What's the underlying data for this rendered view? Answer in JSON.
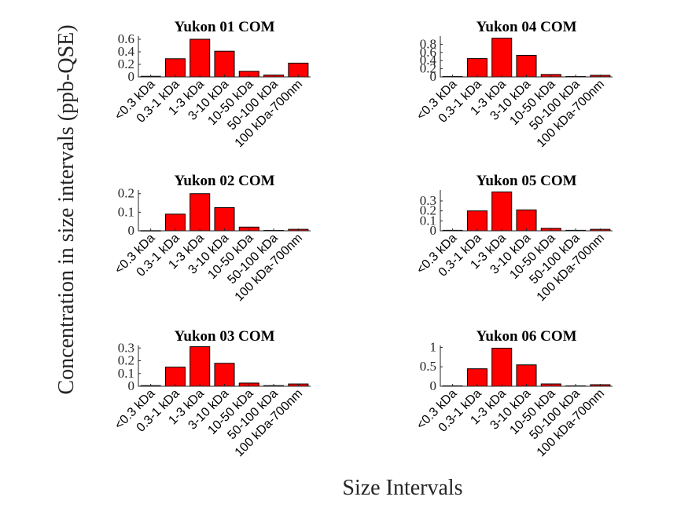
{
  "figure": {
    "ylabel": "Concentration in size intervals (ppb-QSE)",
    "xlabel": "Size Intervals",
    "bar_color": "#ff0000",
    "edge_color": "#000000"
  },
  "chart_data": [
    {
      "type": "bar",
      "title": "Yukon 01 COM",
      "categories": [
        "<0.3 kDa",
        "0.3-1 kDa",
        "1-3 kDa",
        "3-10 kDa",
        "10-50 kDa",
        "50-100 kDa",
        "100 kDa-700nm"
      ],
      "values": [
        0.01,
        0.29,
        0.6,
        0.41,
        0.09,
        0.03,
        0.22
      ],
      "ylim": [
        0,
        0.65
      ],
      "yticks": [
        "0",
        "0.2",
        "0.4",
        "0.6"
      ],
      "ytick_values": [
        0,
        0.2,
        0.4,
        0.6
      ]
    },
    {
      "type": "bar",
      "title": "Yukon 02 COM",
      "categories": [
        "<0.3 kDa",
        "0.3-1 kDa",
        "1-3 kDa",
        "3-10 kDa",
        "10-50 kDa",
        "50-100 kDa",
        "100 kDa-700nm"
      ],
      "values": [
        0.001,
        0.09,
        0.2,
        0.125,
        0.02,
        0.002,
        0.008
      ],
      "ylim": [
        0,
        0.22
      ],
      "yticks": [
        "0",
        "0.1",
        "0.2"
      ],
      "ytick_values": [
        0,
        0.1,
        0.2
      ]
    },
    {
      "type": "bar",
      "title": "Yukon 03 COM",
      "categories": [
        "<0.3 kDa",
        "0.3-1 kDa",
        "1-3 kDa",
        "3-10 kDa",
        "10-50 kDa",
        "50-100 kDa",
        "100 kDa-700nm"
      ],
      "values": [
        0.005,
        0.15,
        0.31,
        0.18,
        0.025,
        0.005,
        0.018
      ],
      "ylim": [
        0,
        0.32
      ],
      "yticks": [
        "0",
        "0.1",
        "0.2",
        "0.3"
      ],
      "ytick_values": [
        0,
        0.1,
        0.2,
        0.3
      ]
    },
    {
      "type": "bar",
      "title": "Yukon 04 COM",
      "categories": [
        "<0.3 kDa",
        "0.3-1 kDa",
        "1-3 kDa",
        "3-10 kDa",
        "10-50 kDa",
        "50-100 kDa",
        "100 kDa-700nm"
      ],
      "values": [
        0.01,
        0.45,
        0.95,
        0.53,
        0.06,
        0.01,
        0.04
      ],
      "ylim": [
        0,
        1.0
      ],
      "yticks": [
        "0",
        "0.2",
        "0.4",
        "0.6",
        "0.8"
      ],
      "ytick_values": [
        0,
        0.2,
        0.4,
        0.6,
        0.8
      ]
    },
    {
      "type": "bar",
      "title": "Yukon 05 COM",
      "categories": [
        "<0.3 kDa",
        "0.3-1 kDa",
        "1-3 kDa",
        "3-10 kDa",
        "10-50 kDa",
        "50-100 kDa",
        "100 kDa-700nm"
      ],
      "values": [
        0.005,
        0.2,
        0.39,
        0.21,
        0.025,
        0.005,
        0.015
      ],
      "ylim": [
        0,
        0.41
      ],
      "yticks": [
        "0",
        "0.1",
        "0.2",
        "0.3"
      ],
      "ytick_values": [
        0,
        0.1,
        0.2,
        0.3
      ]
    },
    {
      "type": "bar",
      "title": "Yukon 06 COM",
      "categories": [
        "<0.3 kDa",
        "0.3-1 kDa",
        "1-3 kDa",
        "3-10 kDa",
        "10-50 kDa",
        "50-100 kDa",
        "100 kDa-700nm"
      ],
      "values": [
        0.01,
        0.45,
        0.98,
        0.55,
        0.06,
        0.01,
        0.04
      ],
      "ylim": [
        0,
        1.05
      ],
      "yticks": [
        "0",
        "0.5",
        "1"
      ],
      "ytick_values": [
        0,
        0.5,
        1
      ]
    }
  ]
}
